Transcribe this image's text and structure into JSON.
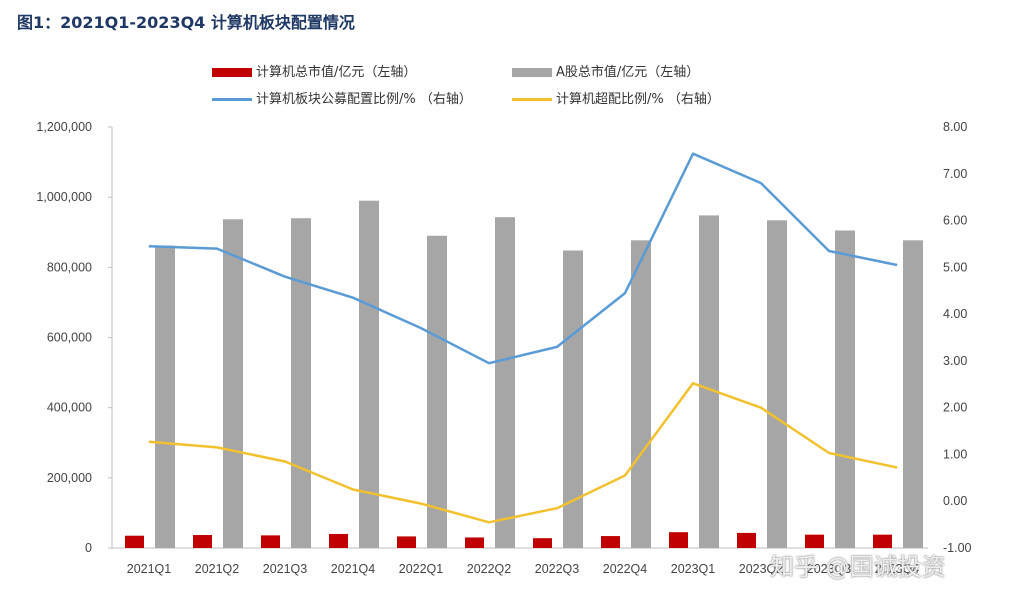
{
  "figure_title": "图1：2021Q1-2023Q4 计算机板块配置情况",
  "watermark": "知乎 @国诚投资",
  "colors": {
    "title": "#1f3864",
    "computer_mv": "#c00000",
    "a_share_mv": "#a6a6a6",
    "fund_alloc": "#5b9bd5",
    "over_alloc": "#f2c12e",
    "axis_text": "#444444",
    "axis_line": "#bfbfbf"
  },
  "chart_data": {
    "type": "bar",
    "categories": [
      "2021Q1",
      "2021Q2",
      "2021Q3",
      "2021Q4",
      "2022Q1",
      "2022Q2",
      "2022Q3",
      "2022Q4",
      "2023Q1",
      "2023Q2",
      "2023Q3",
      "2023Q4"
    ],
    "left_axis": {
      "ylim": [
        0,
        1200000
      ],
      "ticks": [
        0,
        200000,
        400000,
        600000,
        800000,
        1000000,
        1200000
      ],
      "tick_labels": [
        "0",
        "200,000",
        "400,000",
        "600,000",
        "800,000",
        "1,000,000",
        "1,200,000"
      ]
    },
    "right_axis": {
      "ylim": [
        -1.0,
        8.0
      ],
      "ticks": [
        -1,
        0,
        1,
        2,
        3,
        4,
        5,
        6,
        7,
        8
      ],
      "tick_labels": [
        "-1.00",
        "0.00",
        "1.00",
        "2.00",
        "3.00",
        "4.00",
        "5.00",
        "6.00",
        "7.00",
        "8.00"
      ]
    },
    "series": [
      {
        "name": "计算机总市值/亿元（左轴）",
        "type": "bar",
        "axis": "left",
        "values": [
          35000,
          37000,
          36000,
          40000,
          33000,
          30000,
          28000,
          34000,
          45000,
          43000,
          38000,
          38000
        ]
      },
      {
        "name": "A股总市值/亿元（左轴）",
        "type": "bar",
        "axis": "left",
        "values": [
          862000,
          937000,
          940000,
          990000,
          890000,
          943000,
          848000,
          877000,
          948000,
          934000,
          905000,
          877000
        ]
      },
      {
        "name": "计算机板块公募配置比例/% （右轴）",
        "type": "line",
        "axis": "right",
        "values": [
          5.45,
          5.4,
          4.8,
          4.35,
          3.7,
          2.95,
          3.3,
          4.45,
          7.43,
          6.8,
          5.35,
          5.05
        ]
      },
      {
        "name": "计算机超配比例/% （右轴）",
        "type": "line",
        "axis": "right",
        "values": [
          1.27,
          1.15,
          0.85,
          0.25,
          -0.05,
          -0.45,
          -0.15,
          0.55,
          2.52,
          2.0,
          1.03,
          0.72
        ]
      }
    ]
  }
}
